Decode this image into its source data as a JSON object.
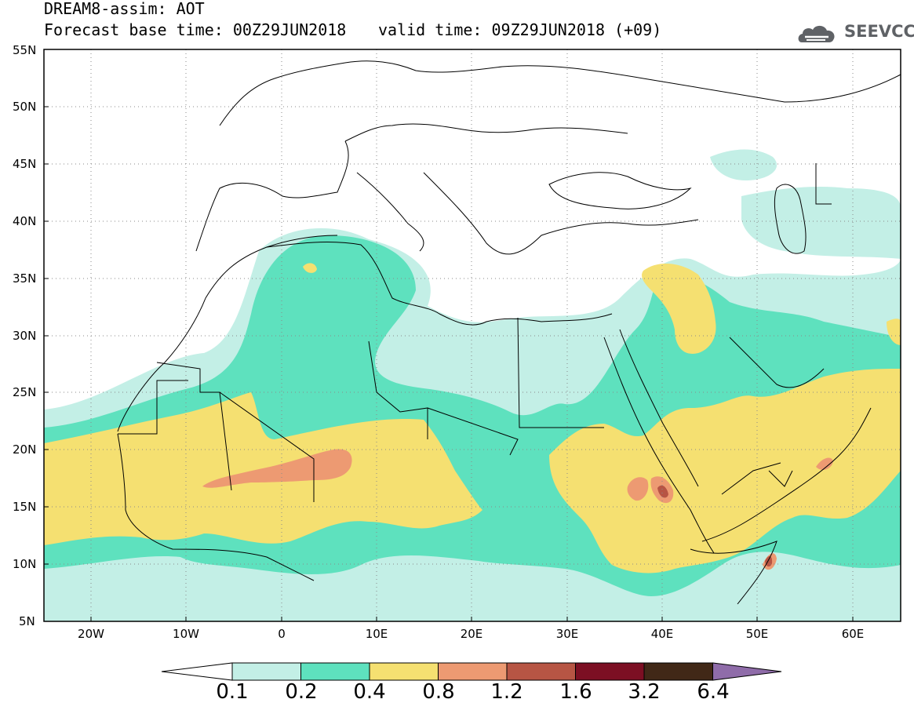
{
  "header": {
    "line1": "DREAM8-assim: AOT",
    "line2": "Forecast base time: 00Z29JUN2018",
    "valid": "valid time: 09Z29JUN2018 (+09)"
  },
  "logo": {
    "text": "SEEVCCC",
    "icon": "cloud-logo-icon",
    "color": "#5f6266"
  },
  "map": {
    "lat_labels": [
      "55N",
      "50N",
      "45N",
      "40N",
      "35N",
      "30N",
      "25N",
      "20N",
      "15N",
      "10N",
      "5N"
    ],
    "lon_labels": [
      "20W",
      "10W",
      "0",
      "10E",
      "20E",
      "30E",
      "40E",
      "50E",
      "60E"
    ],
    "lat_range": [
      5,
      55
    ],
    "lon_range": [
      -25,
      65
    ],
    "grid": "dotted"
  },
  "colorbar": {
    "labels": [
      "0.1",
      "0.2",
      "0.4",
      "0.8",
      "1.2",
      "1.6",
      "3.2",
      "6.4"
    ],
    "colors": [
      "#ffffff",
      "#c3efe6",
      "#5ee1be",
      "#f5e071",
      "#ed9a72",
      "#b75544",
      "#7c0f23",
      "#412817",
      "#8f6ca9"
    ]
  }
}
